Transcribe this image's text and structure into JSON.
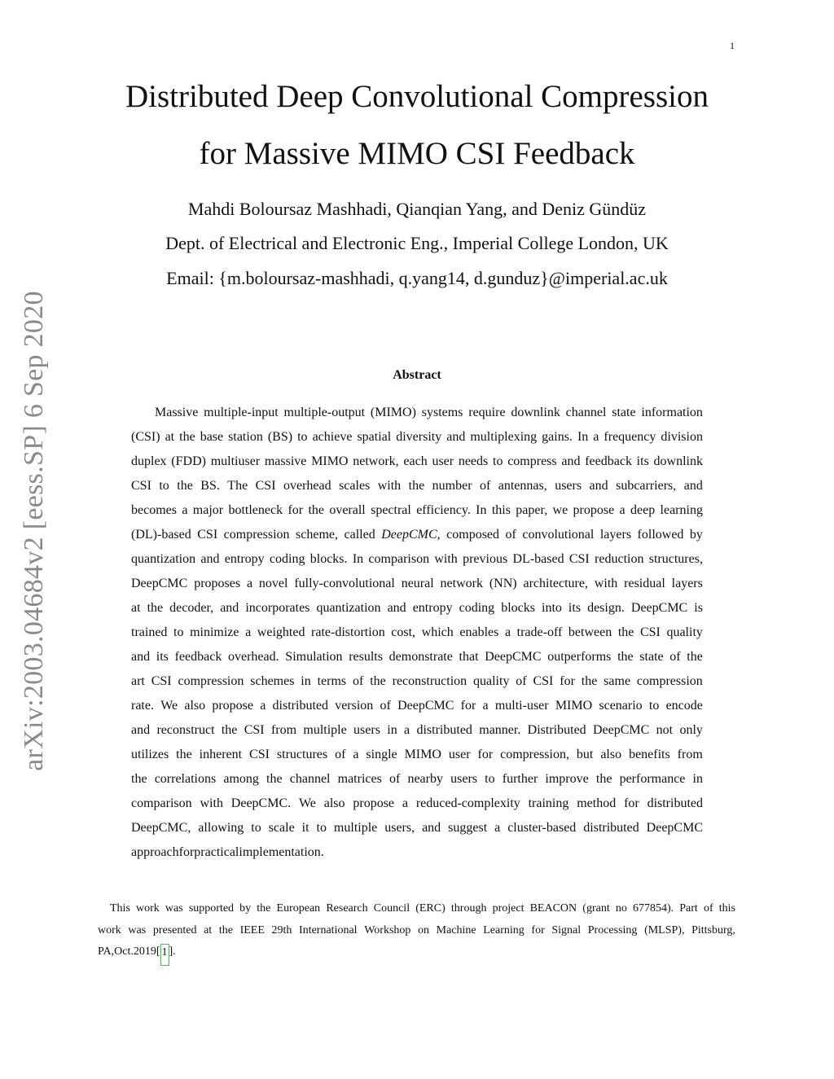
{
  "page_number": "1",
  "arxiv_id": "arXiv:2003.04684v2  [eess.SP]  6 Sep 2020",
  "title_lines": [
    "Distributed Deep Convolutional Compression",
    "for Massive MIMO CSI Feedback"
  ],
  "authors": "Mahdi Boloursaz Mashhadi, Qianqian Yang, and Deniz Gündüz",
  "affiliation": "Dept. of Electrical and Electronic Eng., Imperial College London, UK",
  "email": "Email: {m.boloursaz-mashhadi, q.yang14, d.gunduz}@imperial.ac.uk",
  "abstract_heading": "Abstract",
  "abstract_lines": [
    "Massive multiple-input multiple-output (MIMO) systems require downlink channel state information",
    "(CSI) at the base station (BS) to achieve spatial diversity and multiplexing gains. In a frequency division",
    "duplex (FDD) multiuser massive MIMO network, each user needs to compress and feedback its downlink",
    "CSI to the BS. The CSI overhead scales with the number of antennas, users and subcarriers, and",
    "becomes a major bottleneck for the overall spectral efficiency. In this paper, we propose a deep learning",
    "(DL)-based CSI compression scheme, called DeepCMC, composed of convolutional layers followed by",
    "quantization and entropy coding blocks. In comparison with previous DL-based CSI reduction structures,",
    "DeepCMC proposes a novel fully-convolutional neural network (NN) architecture, with residual layers",
    "at the decoder, and incorporates quantization and entropy coding blocks into its design. DeepCMC is",
    "trained to minimize a weighted rate-distortion cost, which enables a trade-off between the CSI quality",
    "and its feedback overhead. Simulation results demonstrate that DeepCMC outperforms the state of the",
    "art CSI compression schemes in terms of the reconstruction quality of CSI for the same compression",
    "rate. We also propose a distributed version of DeepCMC for a multi-user MIMO scenario to encode",
    "and reconstruct the CSI from multiple users in a distributed manner. Distributed DeepCMC not only",
    "utilizes the inherent CSI structures of a single MIMO user for compression, but also benefits from",
    "the correlations among the channel matrices of nearby users to further improve the performance in",
    "comparison with DeepCMC. We also propose a reduced-complexity training method for distributed",
    "DeepCMC, allowing to scale it to multiple users, and suggest a cluster-based distributed DeepCMC",
    "approach for practical implementation."
  ],
  "footnote_lines": [
    "This work was supported by the European Research Council (ERC) through project BEACON (grant no 677854). Part of this",
    "work was presented at the IEEE 29th International Workshop on Machine Learning for Signal Processing (MLSP), Pittsburg,",
    "PA, Oct. 2019"
  ],
  "footnote_citation": "1",
  "footnote_end": "."
}
